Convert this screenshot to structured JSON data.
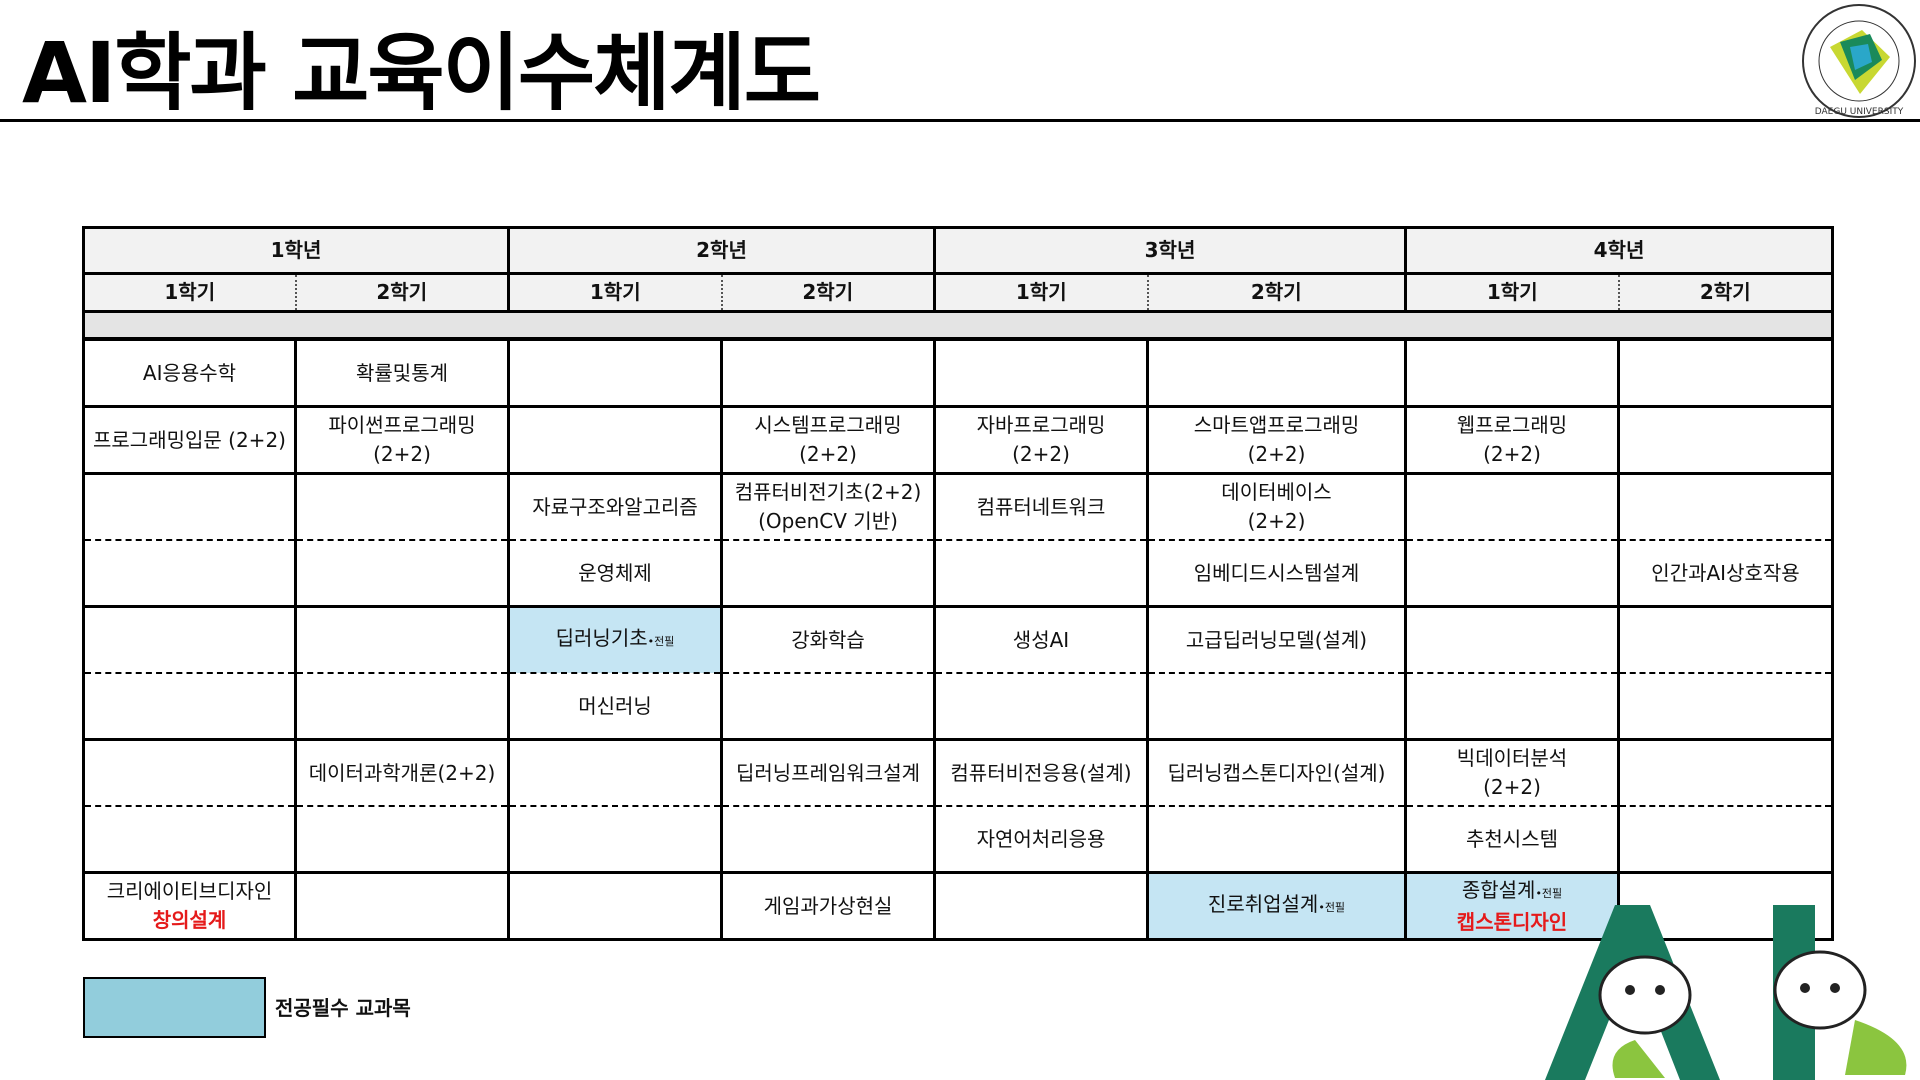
{
  "header": {
    "title": "AI학과 교육이수체계도",
    "logo_text": "대구대학교 DAEGU UNIVERSITY 1956"
  },
  "colors": {
    "required": "#c5e5f3",
    "legend_required": "#92cddc",
    "red_text": "#e51a1a",
    "brand_green": "#1a7a5e"
  },
  "years": [
    "1학년",
    "2학년",
    "3학년",
    "4학년"
  ],
  "semesters": [
    "1학기",
    "2학기",
    "1학기",
    "2학기",
    "1학기",
    "2학기",
    "1학기",
    "2학기"
  ],
  "rows": [
    {
      "dashed": false,
      "cells": [
        {
          "text": "AI응용수학"
        },
        {
          "text": "확률및통계"
        },
        {},
        {},
        {},
        {},
        {},
        {}
      ]
    },
    {
      "dashed": false,
      "cells": [
        {
          "text": "프로그래밍입문 (2+2)"
        },
        {
          "text": "파이썬프로그래밍",
          "sub": "(2+2)"
        },
        {},
        {
          "text": "시스템프로그래밍",
          "sub": "(2+2)"
        },
        {
          "text": "자바프로그래밍",
          "sub": "(2+2)"
        },
        {
          "text": "스마트앱프로그래밍",
          "sub": "(2+2)"
        },
        {
          "text": "웹프로그래밍",
          "sub": "(2+2)"
        },
        {}
      ]
    },
    {
      "dashed": true,
      "cells": [
        {},
        {},
        {
          "text": "자료구조와알고리즘"
        },
        {
          "text": "컴퓨터비전기초(2+2)",
          "sub": "(OpenCV 기반)"
        },
        {
          "text": "컴퓨터네트워크"
        },
        {
          "text": "데이터베이스",
          "sub": "(2+2)"
        },
        {},
        {}
      ]
    },
    {
      "dashed": false,
      "cells": [
        {},
        {},
        {
          "text": "운영체제"
        },
        {},
        {},
        {
          "text": "임베디드시스템설계"
        },
        {},
        {
          "text": "인간과AI상호작용"
        }
      ]
    },
    {
      "dashed": true,
      "cells": [
        {},
        {},
        {
          "text": "딥러닝기초",
          "tag": "•전필",
          "required": true
        },
        {
          "text": "강화학습"
        },
        {
          "text": "생성AI"
        },
        {
          "text": "고급딥러닝모델(설계)"
        },
        {},
        {}
      ]
    },
    {
      "dashed": false,
      "cells": [
        {},
        {},
        {
          "text": "머신러닝"
        },
        {},
        {},
        {},
        {},
        {}
      ]
    },
    {
      "dashed": true,
      "cells": [
        {},
        {
          "text": "데이터과학개론(2+2)"
        },
        {},
        {
          "text": "딥러닝프레임워크설계"
        },
        {
          "text": "컴퓨터비전응용(설계)"
        },
        {
          "text": "딥러닝캡스톤디자인(설계)"
        },
        {
          "text": "빅데이터분석",
          "sub": "(2+2)"
        },
        {}
      ]
    },
    {
      "dashed": false,
      "cells": [
        {},
        {},
        {},
        {},
        {
          "text": "자연어처리응용"
        },
        {},
        {
          "text": "추천시스템"
        },
        {}
      ]
    },
    {
      "dashed": false,
      "cells": [
        {
          "text": "크리에이티브디자인",
          "red": "창의설계"
        },
        {},
        {},
        {
          "text": "게임과가상현실"
        },
        {},
        {
          "text": "진로취업설계",
          "tag": "•전필",
          "required": true
        },
        {
          "text": "종합설계",
          "tag": "•전필",
          "red": "캡스톤디자인",
          "required": true
        },
        {}
      ]
    }
  ],
  "legend": {
    "label": "전공필수 교과목"
  },
  "mascot": {
    "letters": "AI"
  }
}
